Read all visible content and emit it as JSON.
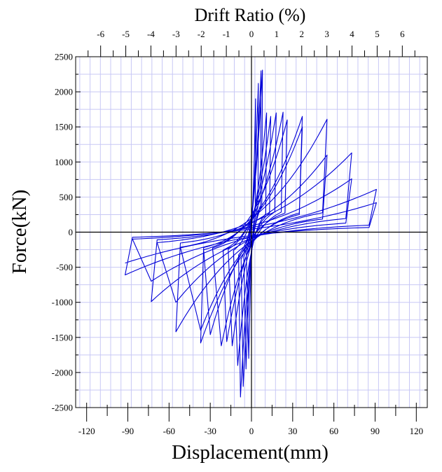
{
  "chart_data": {
    "type": "line",
    "title": "",
    "xlabel": "Displacement(mm)",
    "ylabel": "Force(kN)",
    "x2label": "Drift Ratio (%)",
    "xlim": [
      -128,
      128
    ],
    "ylim": [
      -2500,
      2500
    ],
    "x_ticks": [
      -120,
      -90,
      -60,
      -30,
      0,
      30,
      60,
      90,
      120
    ],
    "x_tick_labels": [
      "-120",
      "-90",
      "-60",
      "-30",
      "0",
      "30",
      "60",
      "90",
      "120"
    ],
    "y_ticks": [
      -2500,
      -2000,
      -1500,
      -1000,
      -500,
      0,
      500,
      1000,
      1500,
      2000,
      2500
    ],
    "y_tick_labels": [
      "-2500",
      "-2000",
      "-1500",
      "-1000",
      "-500",
      "0",
      "500",
      "1000",
      "1500",
      "2000",
      "2500"
    ],
    "x2_ticks": [
      -6,
      -5,
      -4,
      -3,
      -2,
      -1,
      0,
      1,
      2,
      3,
      4,
      5,
      6
    ],
    "x2_tick_labels": [
      "-6",
      "-5",
      "-4",
      "-3",
      "-2",
      "-1",
      "0",
      "1",
      "2",
      "3",
      "4",
      "5",
      "6"
    ],
    "drift_per_mm": 0.05464,
    "grid": true,
    "grid_color": "#c8c8f5",
    "line_color": "#0000d8",
    "axis_color": "#000000",
    "series": [
      {
        "loops": [
          {
            "xmin": -2,
            "xmax": 3,
            "fmin": -1800,
            "fmax": 1900
          },
          {
            "xmin": -4,
            "xmax": 5,
            "fmin": -1950,
            "fmax": 2120
          },
          {
            "xmin": -6,
            "xmax": 7,
            "fmin": -2200,
            "fmax": 2300
          },
          {
            "xmin": -8,
            "xmax": 8,
            "fmin": -2350,
            "fmax": 2310
          },
          {
            "xmin": -10,
            "xmax": 11,
            "fmin": -1900,
            "fmax": 1700
          },
          {
            "xmin": -14,
            "xmax": 14,
            "fmin": -1620,
            "fmax": 1650
          },
          {
            "xmin": -18,
            "xmax": 18,
            "fmin": -1560,
            "fmax": 1700
          },
          {
            "xmin": -22,
            "xmax": 23,
            "fmin": -1620,
            "fmax": 1710
          },
          {
            "xmin": -30,
            "xmax": 26,
            "fmin": -1460,
            "fmax": 1600
          },
          {
            "xmin": -37,
            "xmax": 37,
            "fmin": -1580,
            "fmax": 1650
          },
          {
            "xmin": -37,
            "xmax": 37,
            "fmin": -1400,
            "fmax": 1500
          },
          {
            "xmin": -55,
            "xmax": 55,
            "fmin": -1420,
            "fmax": 1610
          },
          {
            "xmin": -55,
            "xmax": 55,
            "fmin": -1000,
            "fmax": 1100
          },
          {
            "xmin": -73,
            "xmax": 73,
            "fmin": -990,
            "fmax": 1130
          },
          {
            "xmin": -73,
            "xmax": 73,
            "fmin": -700,
            "fmax": 760
          },
          {
            "xmin": -92,
            "xmax": 91,
            "fmin": -610,
            "fmax": 610
          },
          {
            "xmin": -92,
            "xmax": 91,
            "fmin": -440,
            "fmax": 420
          }
        ]
      }
    ]
  }
}
